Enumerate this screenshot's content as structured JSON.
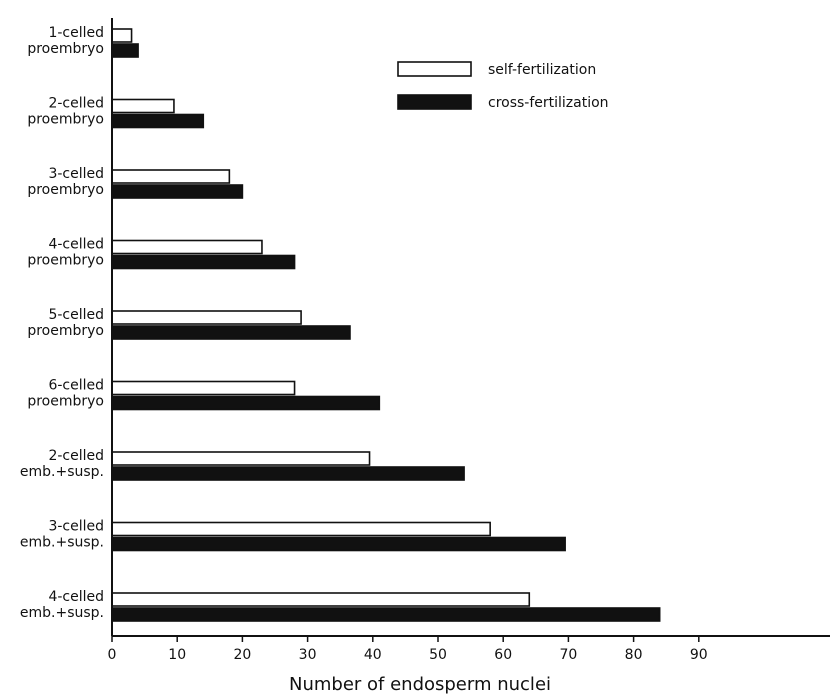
{
  "chart_data": {
    "type": "bar",
    "orientation": "horizontal",
    "categories": [
      [
        "1-celled",
        "proembryo"
      ],
      [
        "2-celled",
        "proembryo"
      ],
      [
        "3-celled",
        "proembryo"
      ],
      [
        "4-celled",
        "proembryo"
      ],
      [
        "5-celled",
        "proembryo"
      ],
      [
        "6-celled",
        "proembryo"
      ],
      [
        "2-celled",
        "emb.+susp."
      ],
      [
        "3-celled",
        "emb.+susp."
      ],
      [
        "4-celled",
        "emb.+susp."
      ]
    ],
    "series": [
      {
        "name": "self-fertilization",
        "color": "#ffffff",
        "values": [
          3,
          9.5,
          18,
          23,
          29,
          28,
          39.5,
          58,
          64
        ]
      },
      {
        "name": "cross-fertilization",
        "color": "#111111",
        "values": [
          4,
          14,
          20,
          28,
          36.5,
          41,
          54,
          69.5,
          84
        ]
      }
    ],
    "xlabel": "Number of endosperm nuclei",
    "xlim": [
      0,
      100
    ],
    "xticks": [
      0,
      10,
      20,
      30,
      40,
      50,
      60,
      70,
      80,
      90
    ],
    "grid": false,
    "legend_position": "top-right"
  }
}
